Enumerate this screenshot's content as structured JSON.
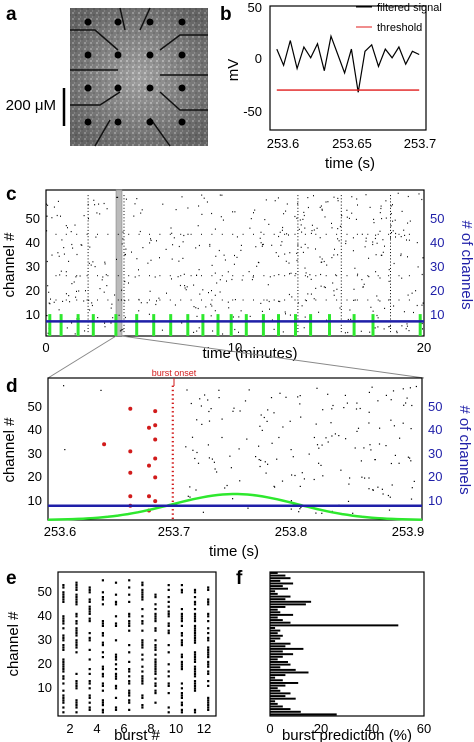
{
  "panels": {
    "a": {
      "label": "a",
      "scalebar": "200 μM"
    },
    "b": {
      "label": "b",
      "ylabel": "mV",
      "xlabel": "time (s)",
      "legend": [
        "filtered signal",
        "threshold"
      ],
      "yticks": [
        "50",
        "0",
        "-50"
      ],
      "xticks": [
        "253.6",
        "253.65",
        "253.7"
      ]
    },
    "c": {
      "label": "c",
      "ylabel": "channel #",
      "ylabel_right": "# of channels",
      "xlabel": "time (minutes)",
      "yticks": [
        "50",
        "40",
        "30",
        "20",
        "10"
      ],
      "yticks_right": [
        "50",
        "40",
        "30",
        "20",
        "10"
      ],
      "xticks": [
        "0",
        "10",
        "20"
      ]
    },
    "d": {
      "label": "d",
      "ylabel": "channel #",
      "ylabel_right": "# of channels",
      "xlabel": "time (s)",
      "annotation": "burst onset",
      "yticks": [
        "50",
        "40",
        "30",
        "20",
        "10"
      ],
      "yticks_right": [
        "50",
        "40",
        "30",
        "20",
        "10"
      ],
      "xticks": [
        "253.6",
        "253.7",
        "253.8",
        "253.9"
      ]
    },
    "e": {
      "label": "e",
      "ylabel": "channel #",
      "xlabel": "burst #",
      "yticks": [
        "50",
        "40",
        "30",
        "20",
        "10"
      ],
      "xticks": [
        "2",
        "4",
        "6",
        "8",
        "10",
        "12"
      ]
    },
    "f": {
      "label": "f",
      "xlabel": "burst prediction (%)",
      "xticks": [
        "0",
        "20",
        "40",
        "60"
      ]
    }
  },
  "colors": {
    "signal": "#000000",
    "threshold": "#e01b1b",
    "channel_count": "#1f1fa8",
    "burst_marker": "#2ee82e",
    "onset_spikes": "#d11b1b"
  },
  "chart_data": [
    {
      "panel": "b",
      "type": "line",
      "series": [
        {
          "name": "filtered signal",
          "x": [
            253.595,
            253.6,
            253.605,
            253.61,
            253.615,
            253.62,
            253.625,
            253.63,
            253.635,
            253.64,
            253.645,
            253.65,
            253.655,
            253.66,
            253.665,
            253.67,
            253.675,
            253.68,
            253.685,
            253.69,
            253.695,
            253.7
          ],
          "values": [
            10,
            -5,
            18,
            -8,
            12,
            2,
            15,
            -10,
            22,
            5,
            -12,
            10,
            -30,
            8,
            14,
            -6,
            10,
            2,
            12,
            -4,
            8,
            5
          ]
        },
        {
          "name": "threshold",
          "x": [
            253.595,
            253.7
          ],
          "values": [
            -28,
            -28
          ]
        }
      ],
      "ylim": [
        -65,
        50
      ],
      "xlim": [
        253.59,
        253.705
      ]
    },
    {
      "panel": "c",
      "type": "scatter",
      "xlim": [
        0,
        20
      ],
      "ylim": [
        0,
        60
      ],
      "channel_count_level": 6,
      "burst_times_min": [
        0.2,
        0.8,
        1.7,
        2.5,
        3.7,
        4.8,
        5.7,
        6.6,
        7.5,
        8.3,
        9.1,
        9.8,
        10.6,
        11.5,
        12.3,
        13.2,
        14.0,
        15.0,
        16.3,
        17.3,
        19.8
      ]
    },
    {
      "panel": "d",
      "type": "scatter",
      "xlim": [
        253.6,
        253.9
      ],
      "ylim": [
        0,
        60
      ],
      "burst_onset": 253.7,
      "channel_count_level": 6,
      "onset_spikes": [
        {
          "x": 253.645,
          "y": 32
        },
        {
          "x": 253.666,
          "y": 47
        },
        {
          "x": 253.666,
          "y": 29
        },
        {
          "x": 253.666,
          "y": 20
        },
        {
          "x": 253.666,
          "y": 10
        },
        {
          "x": 253.666,
          "y": 6
        },
        {
          "x": 253.681,
          "y": 39
        },
        {
          "x": 253.681,
          "y": 23
        },
        {
          "x": 253.681,
          "y": 10
        },
        {
          "x": 253.681,
          "y": 4
        },
        {
          "x": 253.686,
          "y": 46
        },
        {
          "x": 253.686,
          "y": 40
        },
        {
          "x": 253.686,
          "y": 34
        },
        {
          "x": 253.686,
          "y": 26
        },
        {
          "x": 253.686,
          "y": 18
        },
        {
          "x": 253.686,
          "y": 8
        }
      ],
      "gaussian": {
        "mean": 253.75,
        "sd": 0.05,
        "peak": 11
      }
    },
    {
      "panel": "f",
      "type": "bar",
      "xlim": [
        0,
        60
      ],
      "values": [
        26,
        12,
        8,
        5,
        3,
        2,
        10,
        6,
        8,
        4,
        3,
        6,
        11,
        5,
        2,
        6,
        15,
        10,
        4,
        8,
        7,
        3,
        5,
        9,
        5,
        13,
        6,
        8,
        2,
        4,
        5,
        3,
        4,
        2,
        50,
        8,
        5,
        3,
        9,
        4,
        3,
        6,
        14,
        16,
        6,
        8,
        3,
        2,
        7,
        5,
        9,
        4,
        8,
        6,
        3
      ]
    }
  ]
}
